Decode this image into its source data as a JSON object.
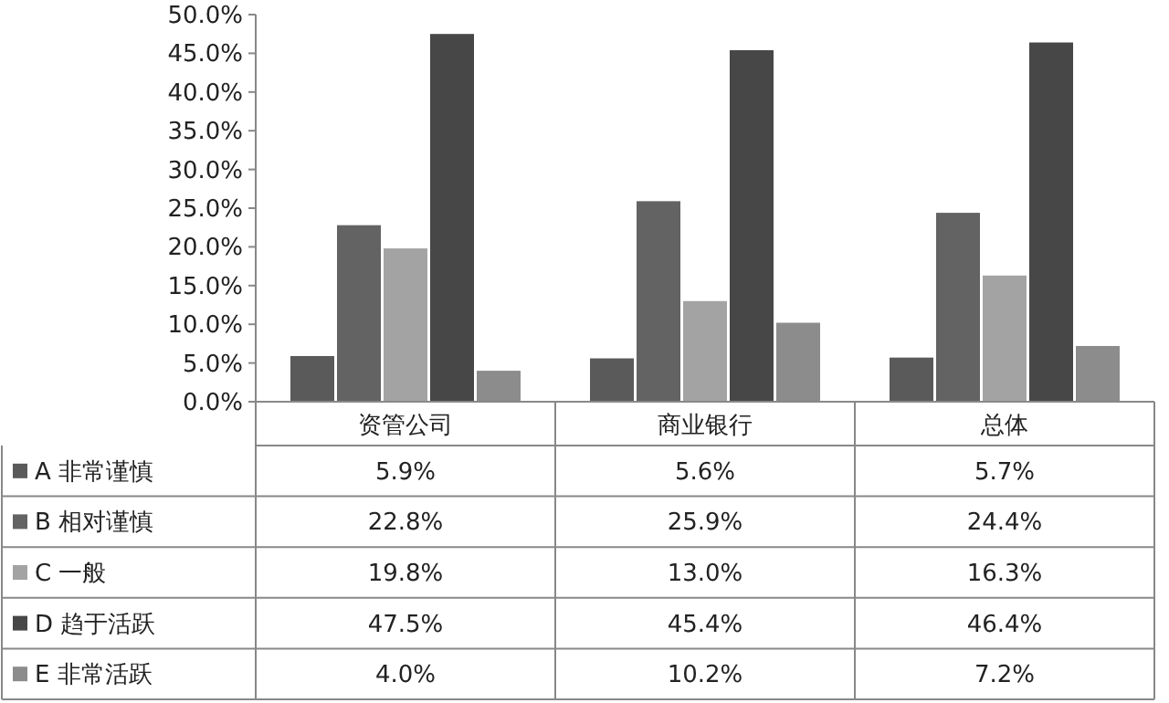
{
  "chart_data": {
    "type": "bar",
    "categories": [
      "资管公司",
      "商业银行",
      "总体"
    ],
    "series": [
      {
        "name": "A 非常谨慎",
        "color": "#5a5a5a",
        "values": [
          5.9,
          5.6,
          5.7
        ],
        "value_labels": [
          "5.9%",
          "5.6%",
          "5.7%"
        ]
      },
      {
        "name": "B 相对谨慎",
        "color": "#636363",
        "values": [
          22.8,
          25.9,
          24.4
        ],
        "value_labels": [
          "22.8%",
          "25.9%",
          "24.4%"
        ]
      },
      {
        "name": "C 一般",
        "color": "#a3a3a3",
        "values": [
          19.8,
          13.0,
          16.3
        ],
        "value_labels": [
          "19.8%",
          "13.0%",
          "16.3%"
        ]
      },
      {
        "name": "D 趋于活跃",
        "color": "#474747",
        "values": [
          47.5,
          45.4,
          46.4
        ],
        "value_labels": [
          "47.5%",
          "45.4%",
          "46.4%"
        ]
      },
      {
        "name": "E 非常活跃",
        "color": "#8c8c8c",
        "values": [
          4.0,
          10.2,
          7.2
        ],
        "value_labels": [
          "4.0%",
          "10.2%",
          "7.2%"
        ]
      }
    ],
    "ylim": [
      0,
      50
    ],
    "yticks": [
      {
        "value": 0,
        "label": "0.0%"
      },
      {
        "value": 5,
        "label": "5.0%"
      },
      {
        "value": 10,
        "label": "10.0%"
      },
      {
        "value": 15,
        "label": "15.0%"
      },
      {
        "value": 20,
        "label": "20.0%"
      },
      {
        "value": 25,
        "label": "25.0%"
      },
      {
        "value": 30,
        "label": "30.0%"
      },
      {
        "value": 35,
        "label": "35.0%"
      },
      {
        "value": 40,
        "label": "40.0%"
      },
      {
        "value": 45,
        "label": "45.0%"
      },
      {
        "value": 50,
        "label": "50.0%"
      }
    ],
    "legend": "bottom left"
  }
}
